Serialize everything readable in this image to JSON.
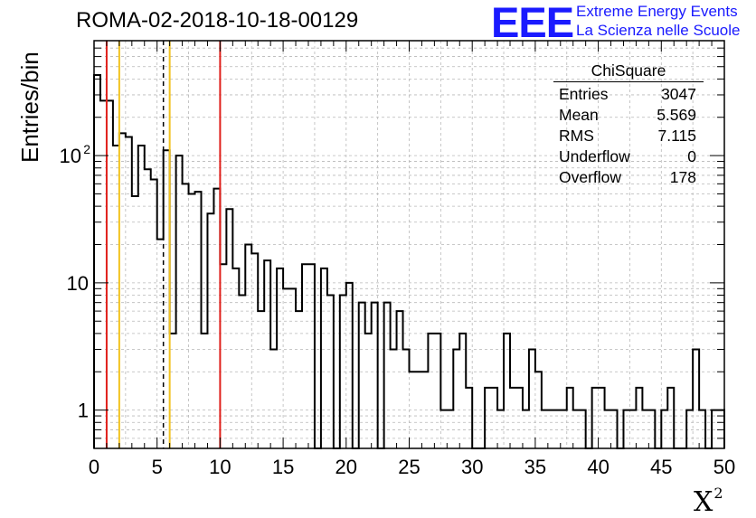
{
  "header": {
    "run_title": "ROMA-02-2018-10-18-00129",
    "logo_text": "EEE",
    "logo_line1": "Extreme Energy Events",
    "logo_line2": "La Scienza nelle Scuole",
    "logo_color": "#1a1aff"
  },
  "stats_box": {
    "title": "ChiSquare",
    "rows": [
      {
        "label": "Entries",
        "value": "3047"
      },
      {
        "label": "Mean",
        "value": "5.569"
      },
      {
        "label": "RMS",
        "value": "7.115"
      },
      {
        "label": "Underflow",
        "value": "0"
      },
      {
        "label": "Overflow",
        "value": "178"
      }
    ]
  },
  "chart_data": {
    "type": "bar",
    "style": "step-histogram",
    "title": "ROMA-02-2018-10-18-00129",
    "xlabel": "X",
    "xlabel_superscript": "2",
    "ylabel": "Entries/bin",
    "xlim": [
      0,
      50
    ],
    "ylim": [
      0.5,
      800
    ],
    "y_scale": "log",
    "bin_width": 0.5,
    "grid": true,
    "x_ticks": [
      0,
      5,
      10,
      15,
      20,
      25,
      30,
      35,
      40,
      45,
      50
    ],
    "y_ticks": [
      {
        "value": 1,
        "label": "1"
      },
      {
        "value": 10,
        "label": "10"
      },
      {
        "value": 100,
        "label": "10",
        "exponent": "2"
      }
    ],
    "values": [
      430,
      270,
      270,
      120,
      150,
      140,
      48,
      120,
      78,
      65,
      22,
      110,
      4,
      100,
      60,
      50,
      52,
      4,
      35,
      55,
      14,
      38,
      13,
      8,
      20,
      17,
      6,
      15,
      3,
      13,
      9,
      9,
      6,
      14,
      14,
      0,
      13,
      8,
      0,
      8,
      10,
      0,
      7,
      4,
      7,
      0,
      7,
      3,
      6,
      3,
      2,
      2,
      2,
      4,
      4,
      1,
      1,
      3,
      4,
      1.5,
      0,
      0,
      1.5,
      1.5,
      1,
      4,
      1.5,
      1.5,
      1,
      3,
      2,
      1,
      1,
      1,
      1,
      1.5,
      1,
      1,
      0,
      1.5,
      1.5,
      1,
      1,
      0,
      1,
      1,
      1.5,
      1,
      1,
      0,
      1,
      1.5,
      0,
      0,
      1,
      3,
      1,
      0,
      1,
      1
    ],
    "vertical_lines": [
      {
        "x": 1.0,
        "color": "#e0201b",
        "style": "solid"
      },
      {
        "x": 2.0,
        "color": "#f2c31f",
        "style": "solid"
      },
      {
        "x": 5.5,
        "color": "#000000",
        "style": "dashed"
      },
      {
        "x": 6.0,
        "color": "#f2c31f",
        "style": "solid"
      },
      {
        "x": 10.0,
        "color": "#e0201b",
        "style": "solid"
      }
    ],
    "stats": {
      "entries": 3047,
      "mean": 5.569,
      "rms": 7.115,
      "underflow": 0,
      "overflow": 178
    }
  }
}
